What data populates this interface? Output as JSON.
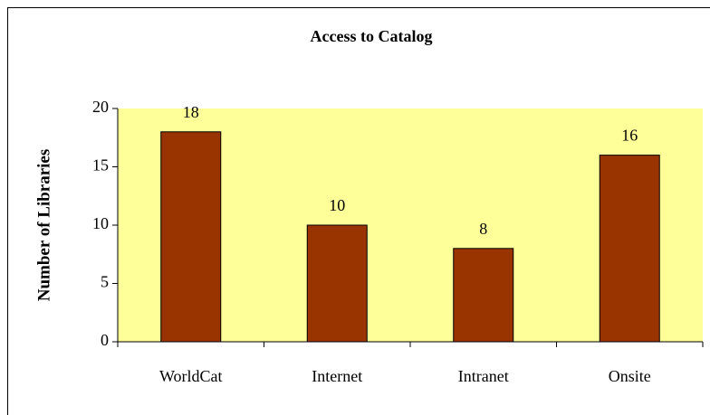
{
  "chart_data": {
    "type": "bar",
    "title": "Access to Catalog",
    "y_label": "Number of Libraries",
    "categories": [
      "WorldCat",
      "Internet",
      "Intranet",
      "Onsite"
    ],
    "values": [
      18,
      10,
      8,
      16
    ],
    "color": "#993300",
    "plot_background": "#ffff99",
    "ylim": [
      0,
      20
    ],
    "yticks": [
      0,
      5,
      10,
      15,
      20
    ],
    "grid": false,
    "data_labels": true
  }
}
